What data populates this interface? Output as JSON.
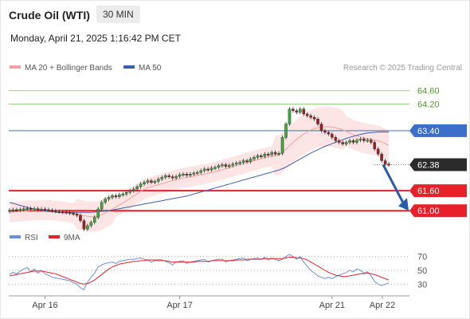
{
  "header": {
    "instrument": "Crude Oil (WTI)",
    "interval": "30 MIN",
    "datetime": "Monday, April 21, 2025 1:16:42 PM CET"
  },
  "legend": {
    "ma20_label": "MA 20 + Bollinger Bands",
    "ma50_label": "MA 50",
    "credit": "Research © 2025 Trading Central"
  },
  "rsi_legend": {
    "rsi_label": "RSI",
    "ma_label": "9MA"
  },
  "colors": {
    "bull": "#3da83d",
    "bear": "#a01f1f",
    "ma20": "#f2a0a0",
    "ma50": "#3b5fae",
    "bollinger_fill": "#fde2e2",
    "resistance": "#9bd27b",
    "pivot": "#3b6fc9",
    "support": "#e8202a",
    "current": "#2b2b2b",
    "rsi": "#6a8fd8",
    "rsi_ma": "#e8202a",
    "forecast_arrow": "#2a5aa8"
  },
  "chart_data": {
    "type": "candlestick",
    "title": "Crude Oil (WTI)",
    "timeframe": "30 MIN",
    "x_tick_labels": [
      "Apr 16",
      "Apr 17",
      "Apr 21",
      "Apr 22"
    ],
    "y_range": [
      60.55,
      65.0
    ],
    "current_price": 62.38,
    "levels": [
      {
        "value": 64.6,
        "label": "64.60",
        "kind": "resistance"
      },
      {
        "value": 64.2,
        "label": "64.20",
        "kind": "resistance"
      },
      {
        "value": 63.4,
        "label": "63.40",
        "kind": "pivot"
      },
      {
        "value": 62.38,
        "label": "62.38",
        "kind": "current"
      },
      {
        "value": 61.6,
        "label": "61.60",
        "kind": "support"
      },
      {
        "value": 61.0,
        "label": "61.00",
        "kind": "support"
      }
    ],
    "forecast_arrow": {
      "from_price": 62.38,
      "to_price": 61.0
    },
    "closes": [
      61.01,
      61.03,
      61.02,
      61.04,
      61.06,
      61.07,
      61.05,
      61.06,
      61.04,
      61.05,
      61.03,
      61.02,
      61.0,
      60.98,
      60.97,
      60.96,
      60.95,
      60.93,
      60.9,
      60.86,
      60.7,
      60.45,
      60.55,
      60.65,
      60.8,
      61.05,
      61.25,
      61.35,
      61.4,
      61.45,
      61.42,
      61.48,
      61.5,
      61.55,
      61.6,
      61.65,
      61.72,
      61.8,
      61.85,
      61.9,
      61.85,
      61.88,
      61.95,
      62.0,
      62.05,
      62.02,
      61.98,
      62.03,
      62.08,
      62.1,
      62.06,
      62.1,
      62.13,
      62.15,
      62.2,
      62.25,
      62.22,
      62.28,
      62.3,
      62.35,
      62.38,
      62.33,
      62.36,
      62.4,
      62.43,
      62.45,
      62.5,
      62.47,
      62.55,
      62.6,
      62.65,
      62.63,
      62.7,
      62.68,
      62.75,
      62.7,
      62.72,
      63.2,
      63.6,
      64.05,
      64.0,
      63.95,
      64.05,
      63.9,
      63.85,
      63.8,
      63.75,
      63.6,
      63.4,
      63.35,
      63.3,
      63.2,
      63.1,
      63.05,
      63.0,
      63.05,
      63.1,
      63.05,
      63.12,
      63.15,
      63.1,
      63.12,
      63.05,
      62.85,
      62.7,
      62.5,
      62.4,
      62.38
    ],
    "ma20": [
      60.95,
      60.96,
      60.97,
      60.98,
      60.99,
      61.0,
      61.01,
      61.01,
      61.02,
      61.02,
      61.02,
      61.02,
      61.01,
      61.0,
      60.99,
      60.98,
      60.96,
      60.94,
      60.92,
      60.9,
      60.88,
      60.85,
      60.83,
      60.82,
      60.82,
      60.84,
      60.88,
      60.93,
      60.99,
      61.05,
      61.11,
      61.17,
      61.23,
      61.3,
      61.37,
      61.44,
      61.51,
      61.58,
      61.64,
      61.69,
      61.72,
      61.75,
      61.78,
      61.81,
      61.84,
      61.87,
      61.9,
      61.93,
      61.96,
      61.98,
      62.0,
      62.02,
      62.04,
      62.06,
      62.08,
      62.1,
      62.12,
      62.14,
      62.17,
      62.2,
      62.23,
      62.26,
      62.29,
      62.32,
      62.35,
      62.38,
      62.41,
      62.44,
      62.47,
      62.5,
      62.53,
      62.56,
      62.59,
      62.61,
      62.63,
      62.65,
      62.68,
      62.75,
      62.84,
      62.95,
      63.05,
      63.14,
      63.22,
      63.3,
      63.36,
      63.42,
      63.46,
      63.49,
      63.51,
      63.52,
      63.52,
      63.51,
      63.49,
      63.46,
      63.42,
      63.38,
      63.33,
      63.28,
      63.24,
      63.21,
      63.18,
      63.16,
      63.14,
      63.12,
      63.1,
      63.06,
      63.01,
      62.96
    ],
    "ma50": [
      61.25,
      61.22,
      61.19,
      61.16,
      61.13,
      61.1,
      61.07,
      61.05,
      61.03,
      61.01,
      60.99,
      60.98,
      60.97,
      60.96,
      60.95,
      60.95,
      60.95,
      60.95,
      60.95,
      60.95,
      60.95,
      60.95,
      60.95,
      60.95,
      60.96,
      60.97,
      60.98,
      60.99,
      61.0,
      61.02,
      61.04,
      61.06,
      61.08,
      61.1,
      61.12,
      61.14,
      61.16,
      61.18,
      61.2,
      61.22,
      61.24,
      61.26,
      61.28,
      61.3,
      61.32,
      61.34,
      61.36,
      61.38,
      61.4,
      61.42,
      61.44,
      61.47,
      61.5,
      61.53,
      61.56,
      61.59,
      61.62,
      61.65,
      61.68,
      61.71,
      61.74,
      61.77,
      61.8,
      61.83,
      61.86,
      61.89,
      61.92,
      61.95,
      61.98,
      62.01,
      62.04,
      62.07,
      62.1,
      62.13,
      62.16,
      62.19,
      62.22,
      62.26,
      62.31,
      62.37,
      62.43,
      62.49,
      62.55,
      62.61,
      62.67,
      62.73,
      62.78,
      62.83,
      62.88,
      62.93,
      62.97,
      63.01,
      63.05,
      63.09,
      63.13,
      63.17,
      63.2,
      63.23,
      63.26,
      63.29,
      63.31,
      63.33,
      63.34,
      63.35,
      63.36,
      63.36,
      63.36,
      63.36
    ],
    "rsi": {
      "y_ticks": [
        70,
        50,
        30
      ],
      "y_range": [
        20,
        80
      ],
      "rsi": [
        44,
        47,
        45,
        49,
        52,
        54,
        48,
        52,
        46,
        50,
        45,
        43,
        40,
        39,
        38,
        37,
        36,
        35,
        32,
        30,
        25,
        22,
        33,
        40,
        46,
        55,
        58,
        60,
        61,
        62,
        60,
        63,
        64,
        65,
        66,
        66,
        67,
        68,
        66,
        65,
        62,
        64,
        66,
        65,
        63,
        61,
        58,
        62,
        63,
        64,
        60,
        62,
        63,
        64,
        65,
        66,
        62,
        64,
        65,
        66,
        66,
        62,
        64,
        65,
        66,
        67,
        68,
        64,
        66,
        67,
        68,
        66,
        69,
        65,
        68,
        66,
        64,
        66,
        70,
        73,
        70,
        66,
        70,
        62,
        56,
        50,
        46,
        42,
        40,
        38,
        40,
        38,
        41,
        43,
        45,
        47,
        50,
        48,
        52,
        50,
        46,
        48,
        42,
        34,
        30,
        28,
        30,
        32
      ],
      "ma9": [
        42,
        43,
        44,
        45,
        46,
        47,
        48,
        49,
        49,
        49,
        48,
        47,
        46,
        45,
        43,
        41,
        39,
        37,
        35,
        33,
        31,
        30,
        31,
        33,
        36,
        40,
        44,
        48,
        52,
        55,
        57,
        59,
        60,
        61,
        62,
        63,
        63,
        64,
        64,
        65,
        65,
        65,
        64,
        64,
        64,
        63,
        62,
        62,
        62,
        62,
        62,
        62,
        62,
        63,
        63,
        63,
        63,
        64,
        64,
        64,
        64,
        64,
        64,
        64,
        65,
        65,
        65,
        66,
        66,
        66,
        66,
        66,
        67,
        67,
        67,
        67,
        67,
        67,
        68,
        69,
        69,
        68,
        68,
        67,
        65,
        62,
        59,
        56,
        53,
        50,
        47,
        45,
        43,
        42,
        41,
        41,
        42,
        43,
        44,
        45,
        45,
        46,
        45,
        44,
        42,
        40,
        38,
        36
      ]
    }
  }
}
